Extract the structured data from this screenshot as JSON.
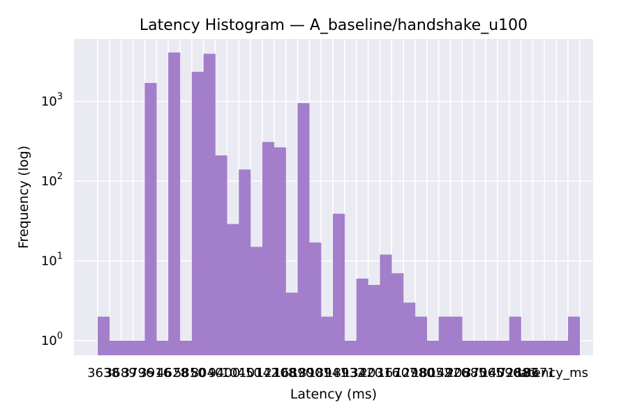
{
  "chart_data": {
    "type": "bar",
    "title": "Latency Histogram — A_baseline/handshake_u100",
    "xlabel": "Latency (ms)",
    "ylabel": "Frequency (log)",
    "yscale": "log",
    "ylim": [
      0.65,
      6000
    ],
    "ytick_labels": [
      {
        "base": "10",
        "exp": "0",
        "value": 1
      },
      {
        "base": "10",
        "exp": "1",
        "value": 10
      },
      {
        "base": "10",
        "exp": "2",
        "value": 100
      },
      {
        "base": "10",
        "exp": "3",
        "value": 1000
      }
    ],
    "xtick_labels": [
      "3638",
      "3689",
      "3796",
      "3916",
      "4628",
      "5850",
      "8040",
      "9400",
      "10450",
      "10142",
      "12108",
      "16890",
      "18901",
      "18941",
      "18932",
      "13420",
      "20316",
      "16707",
      "12980",
      "18052",
      "14926",
      "20885",
      "37065",
      "14096",
      "72883",
      "18671",
      "latency_ms"
    ],
    "bin_counts": [
      2,
      1,
      1,
      1,
      1700,
      1,
      4100,
      1,
      2350,
      3950,
      210,
      29,
      140,
      15,
      310,
      265,
      4,
      950,
      17,
      2,
      39,
      1,
      6,
      5,
      12,
      7,
      3,
      2,
      1,
      2,
      2,
      1,
      1,
      1,
      1,
      2,
      1,
      1,
      1,
      1,
      2
    ],
    "bar_color": "#9b72c6",
    "background": "#eaeaf2",
    "grid": true
  }
}
